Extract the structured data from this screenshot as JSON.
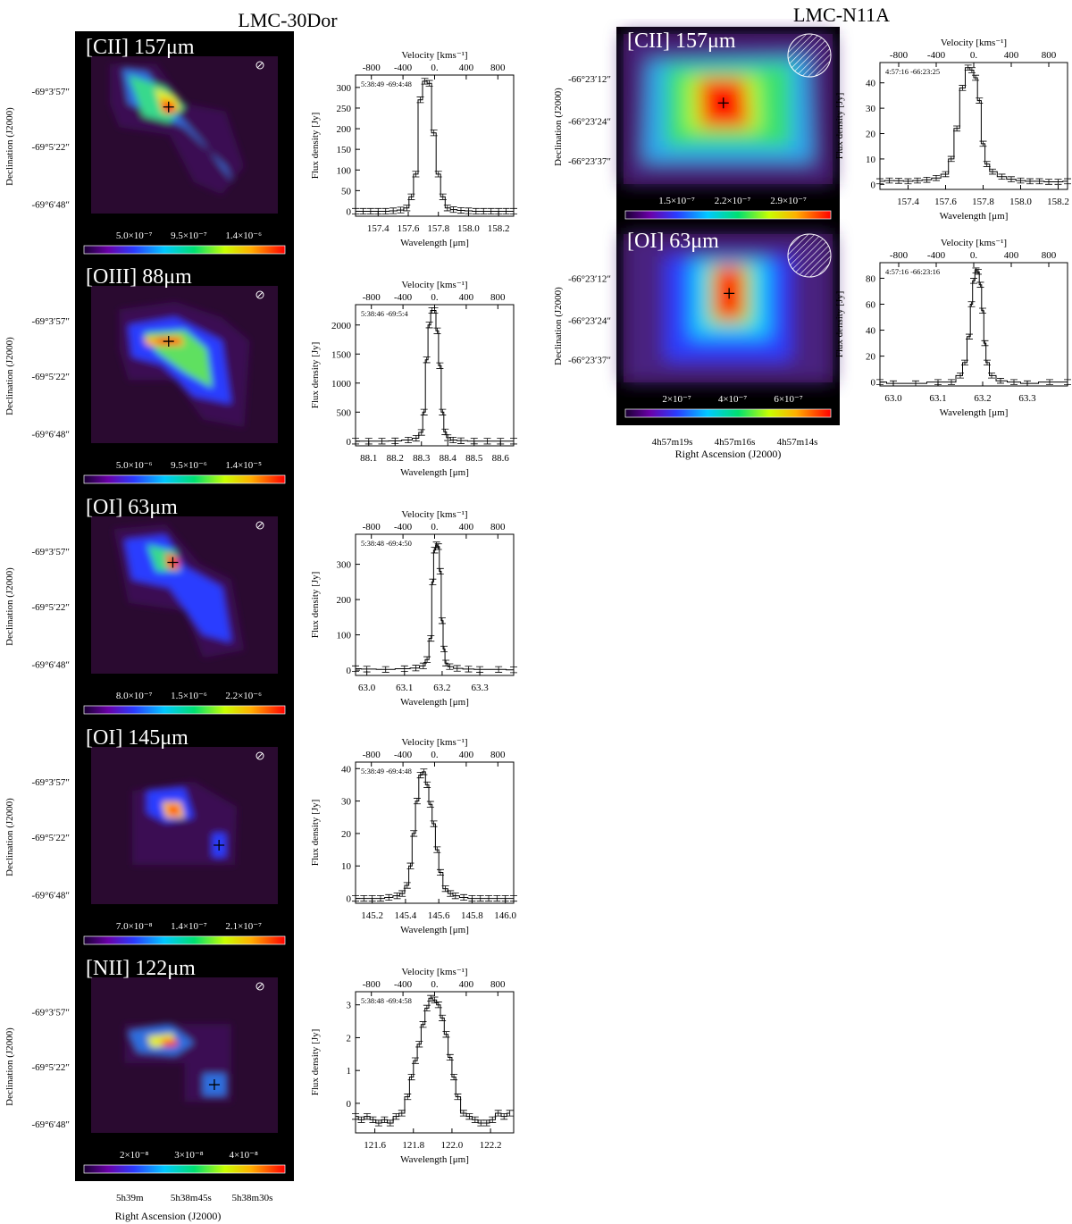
{
  "figure": {
    "title_left": "LMC-30Dor",
    "title_right": "LMC-N11A",
    "map_dec_axis_label": "Declination (J2000)",
    "map_ra_axis_label": "Right Ascension (J2000)",
    "spectrum_y_label": "Flux density [Jy]",
    "spectrum_x_label": "Wavelength [μm]",
    "spectrum_top_label": "Velocity [kms⁻¹]",
    "velocity_ticks": [
      "-800",
      "-400",
      "0.",
      "400",
      "800"
    ]
  },
  "panels": [
    {
      "id": "30dor-cii",
      "map_title": "[CII] 157μm",
      "dec_ticks": [
        "-69°3′57″",
        "-69°5′22″",
        "-69°6′48″"
      ],
      "colorbar_ticks": [
        "5.0×10⁻⁷",
        "9.5×10⁻⁷",
        "1.4×10⁻⁶"
      ],
      "ra_ticks": [],
      "coord_label": "5:38:49 -69:4:48",
      "chart_data": {
        "type": "line",
        "x_ticks": [
          "157.4",
          "157.6",
          "157.8",
          "158.0",
          "158.2"
        ],
        "y_ticks": [
          "0",
          "50",
          "100",
          "150",
          "200",
          "250",
          "300"
        ],
        "xlim": [
          157.25,
          158.3
        ],
        "ylim": [
          -12,
          330
        ],
        "x": [
          157.25,
          157.3,
          157.35,
          157.4,
          157.45,
          157.5,
          157.55,
          157.59,
          157.62,
          157.65,
          157.68,
          157.71,
          157.74,
          157.77,
          157.8,
          157.83,
          157.86,
          157.9,
          157.95,
          158.0,
          158.05,
          158.1,
          158.15,
          158.2,
          158.25,
          158.3
        ],
        "y": [
          0,
          0,
          0,
          0,
          0,
          1,
          3,
          8,
          35,
          90,
          270,
          315,
          310,
          190,
          90,
          35,
          8,
          4,
          2,
          1,
          0,
          0,
          0,
          0,
          0,
          0
        ]
      }
    },
    {
      "id": "30dor-oiii",
      "map_title": "[OIII] 88μm",
      "dec_ticks": [
        "-69°3′57″",
        "-69°5′22″",
        "-69°6′48″"
      ],
      "colorbar_ticks": [
        "5.0×10⁻⁶",
        "9.5×10⁻⁶",
        "1.4×10⁻⁵"
      ],
      "ra_ticks": [],
      "coord_label": "5:38:46 -69:5:4",
      "chart_data": {
        "type": "line",
        "x_ticks": [
          "88.1",
          "88.2",
          "88.3",
          "88.4",
          "88.5",
          "88.6"
        ],
        "y_ticks": [
          "0",
          "500",
          "1000",
          "1500",
          "2000"
        ],
        "xlim": [
          88.05,
          88.65
        ],
        "ylim": [
          -80,
          2350
        ],
        "x": [
          88.05,
          88.1,
          88.15,
          88.2,
          88.25,
          88.28,
          88.3,
          88.31,
          88.32,
          88.33,
          88.34,
          88.35,
          88.36,
          88.37,
          88.38,
          88.39,
          88.4,
          88.42,
          88.45,
          88.5,
          88.55,
          88.6,
          88.65
        ],
        "y": [
          0,
          0,
          0,
          5,
          20,
          50,
          150,
          500,
          1400,
          2000,
          2250,
          2250,
          1900,
          1300,
          500,
          160,
          60,
          20,
          8,
          2,
          0,
          0,
          0
        ]
      }
    },
    {
      "id": "30dor-oi63",
      "map_title": "[OI] 63μm",
      "dec_ticks": [
        "-69°3′57″",
        "-69°5′22″",
        "-69°6′48″"
      ],
      "colorbar_ticks": [
        "8.0×10⁻⁷",
        "1.5×10⁻⁶",
        "2.2×10⁻⁶"
      ],
      "ra_ticks": [],
      "coord_label": "5:38:48 -69:4:50",
      "chart_data": {
        "type": "line",
        "x_ticks": [
          "63.0",
          "63.1",
          "63.2",
          "63.3"
        ],
        "y_ticks": [
          "0",
          "100",
          "200",
          "300"
        ],
        "xlim": [
          62.97,
          63.39
        ],
        "ylim": [
          -15,
          385
        ],
        "x": [
          62.97,
          63.0,
          63.05,
          63.1,
          63.13,
          63.15,
          63.16,
          63.17,
          63.175,
          63.18,
          63.185,
          63.19,
          63.195,
          63.2,
          63.205,
          63.21,
          63.22,
          63.24,
          63.27,
          63.3,
          63.35,
          63.39
        ],
        "y": [
          4,
          3,
          2,
          4,
          6,
          12,
          30,
          90,
          250,
          340,
          355,
          350,
          280,
          140,
          60,
          20,
          10,
          5,
          3,
          2,
          2,
          1
        ]
      }
    },
    {
      "id": "30dor-oi145",
      "map_title": "[OI] 145μm",
      "dec_ticks": [
        "-69°3′57″",
        "-69°5′22″",
        "-69°6′48″"
      ],
      "colorbar_ticks": [
        "7.0×10⁻⁸",
        "1.4×10⁻⁷",
        "2.1×10⁻⁷"
      ],
      "ra_ticks": [],
      "coord_label": "5:38:49 -69:4:48",
      "chart_data": {
        "type": "line",
        "x_ticks": [
          "145.2",
          "145.4",
          "145.6",
          "145.8",
          "146.0"
        ],
        "y_ticks": [
          "0",
          "10",
          "20",
          "30",
          "40"
        ],
        "xlim": [
          145.1,
          146.05
        ],
        "ylim": [
          -1.5,
          42
        ],
        "x": [
          145.1,
          145.15,
          145.2,
          145.25,
          145.3,
          145.35,
          145.38,
          145.41,
          145.43,
          145.45,
          145.47,
          145.49,
          145.51,
          145.53,
          145.55,
          145.57,
          145.59,
          145.61,
          145.64,
          145.67,
          145.7,
          145.75,
          145.8,
          145.85,
          145.9,
          145.95,
          146.0,
          146.05
        ],
        "y": [
          0,
          0,
          0,
          0,
          0.3,
          0.8,
          1.5,
          4,
          10,
          20,
          30,
          38,
          39,
          35,
          29,
          23,
          15,
          8,
          3,
          1.5,
          0.8,
          0.3,
          0,
          0,
          0,
          0,
          0,
          0
        ]
      }
    },
    {
      "id": "30dor-nii",
      "map_title": "[NII] 122μm",
      "dec_ticks": [
        "-69°3′57″",
        "-69°5′22″",
        "-69°6′48″"
      ],
      "colorbar_ticks": [
        "2×10⁻⁸",
        "3×10⁻⁸",
        "4×10⁻⁸"
      ],
      "ra_ticks": [
        "5h39m",
        "5h38m45s",
        "5h38m30s"
      ],
      "coord_label": "5:38:48 -69:4:58",
      "chart_data": {
        "type": "line",
        "x_ticks": [
          "121.6",
          "121.8",
          "122.0",
          "122.2"
        ],
        "y_ticks": [
          "0",
          "1",
          "2",
          "3"
        ],
        "xlim": [
          121.5,
          122.32
        ],
        "ylim": [
          -0.9,
          3.4
        ],
        "x": [
          121.5,
          121.53,
          121.56,
          121.59,
          121.62,
          121.65,
          121.68,
          121.71,
          121.74,
          121.77,
          121.79,
          121.81,
          121.83,
          121.85,
          121.87,
          121.89,
          121.91,
          121.93,
          121.95,
          121.97,
          121.99,
          122.01,
          122.03,
          122.06,
          122.09,
          122.12,
          122.15,
          122.18,
          122.21,
          122.24,
          122.27,
          122.3
        ],
        "y": [
          -0.4,
          -0.5,
          -0.4,
          -0.5,
          -0.6,
          -0.5,
          -0.6,
          -0.4,
          -0.3,
          0.2,
          0.8,
          1.3,
          1.8,
          2.4,
          2.9,
          3.2,
          3.15,
          3.0,
          2.6,
          2.1,
          1.4,
          0.8,
          0.2,
          -0.3,
          -0.4,
          -0.5,
          -0.6,
          -0.6,
          -0.5,
          -0.3,
          -0.4,
          -0.3
        ]
      }
    },
    {
      "id": "n11a-cii",
      "map_title": "[CII] 157μm",
      "dec_ticks": [
        "-66°23′12″",
        "-66°23′24″",
        "-66°23′37″"
      ],
      "colorbar_ticks": [
        "1.5×10⁻⁷",
        "2.2×10⁻⁷",
        "2.9×10⁻⁷"
      ],
      "ra_ticks": [],
      "coord_label": "4:57:16 -66:23:25",
      "chart_data": {
        "type": "line",
        "x_ticks": [
          "157.4",
          "157.6",
          "157.8",
          "158.0",
          "158.2"
        ],
        "y_ticks": [
          "0",
          "10",
          "20",
          "30",
          "40"
        ],
        "xlim": [
          157.25,
          158.25
        ],
        "ylim": [
          -2,
          48
        ],
        "x": [
          157.25,
          157.3,
          157.35,
          157.4,
          157.45,
          157.5,
          157.55,
          157.6,
          157.63,
          157.66,
          157.69,
          157.72,
          157.74,
          157.76,
          157.78,
          157.8,
          157.82,
          157.85,
          157.9,
          157.95,
          158.0,
          158.05,
          158.1,
          158.15,
          158.2,
          158.25
        ],
        "y": [
          1.2,
          1.5,
          1.4,
          1.2,
          1.5,
          1.8,
          2.5,
          4,
          10,
          22,
          38,
          46,
          45,
          42,
          33,
          16,
          8,
          5,
          3,
          2,
          1.5,
          1.2,
          1.2,
          1.0,
          1.0,
          1.2
        ]
      }
    },
    {
      "id": "n11a-oi63",
      "map_title": "[OI] 63μm",
      "dec_ticks": [
        "-66°23′12″",
        "-66°23′24″",
        "-66°23′37″"
      ],
      "colorbar_ticks": [
        "2×10⁻⁷",
        "4×10⁻⁷",
        "6×10⁻⁷"
      ],
      "ra_ticks": [
        "4h57m19s",
        "4h57m16s",
        "4h57m14s"
      ],
      "coord_label": "4:57:16 -66:23:16",
      "chart_data": {
        "type": "line",
        "x_ticks": [
          "63.0",
          "63.1",
          "63.2",
          "63.3"
        ],
        "y_ticks": [
          "0",
          "20",
          "40",
          "60",
          "80"
        ],
        "xlim": [
          62.97,
          63.39
        ],
        "ylim": [
          -3,
          92
        ],
        "x": [
          62.97,
          63.0,
          63.05,
          63.1,
          63.13,
          63.15,
          63.16,
          63.17,
          63.175,
          63.18,
          63.185,
          63.19,
          63.195,
          63.2,
          63.205,
          63.21,
          63.22,
          63.24,
          63.27,
          63.3,
          63.35,
          63.39
        ],
        "y": [
          0,
          -1,
          -1,
          0,
          0,
          5,
          15,
          35,
          60,
          78,
          86,
          85,
          75,
          55,
          30,
          15,
          5,
          1,
          0,
          -1,
          0,
          0
        ]
      }
    }
  ]
}
